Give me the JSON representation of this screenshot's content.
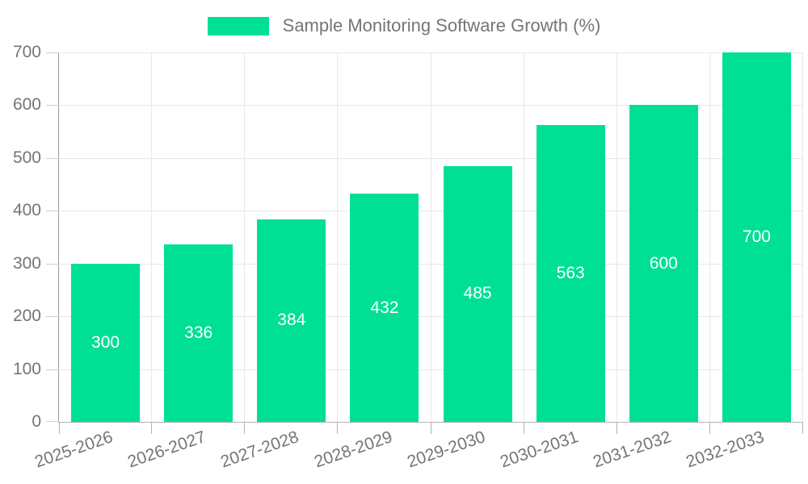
{
  "chart_data": {
    "type": "bar",
    "title": "Sample Monitoring Software Growth (%)",
    "legend_position": "top",
    "categories": [
      "2025-2026",
      "2026-2027",
      "2027-2028",
      "2028-2029",
      "2029-2030",
      "2030-2031",
      "2031-2032",
      "2032-2033"
    ],
    "values": [
      300,
      336,
      384,
      432,
      485,
      563,
      600,
      700
    ],
    "xlabel": "",
    "ylabel": "",
    "ylim": [
      0,
      700
    ],
    "y_ticks": [
      0,
      100,
      200,
      300,
      400,
      500,
      600,
      700
    ],
    "grid": true,
    "colors": {
      "bar": "#00e094",
      "bar_value_label": "#ffffff",
      "axis_label_text": "#757575",
      "legend_text": "#757575",
      "gridline": "#e8e8e8",
      "y_axis_line": "#999999",
      "x_axis_line": "#b3b3b3",
      "background": "#ffffff"
    }
  }
}
